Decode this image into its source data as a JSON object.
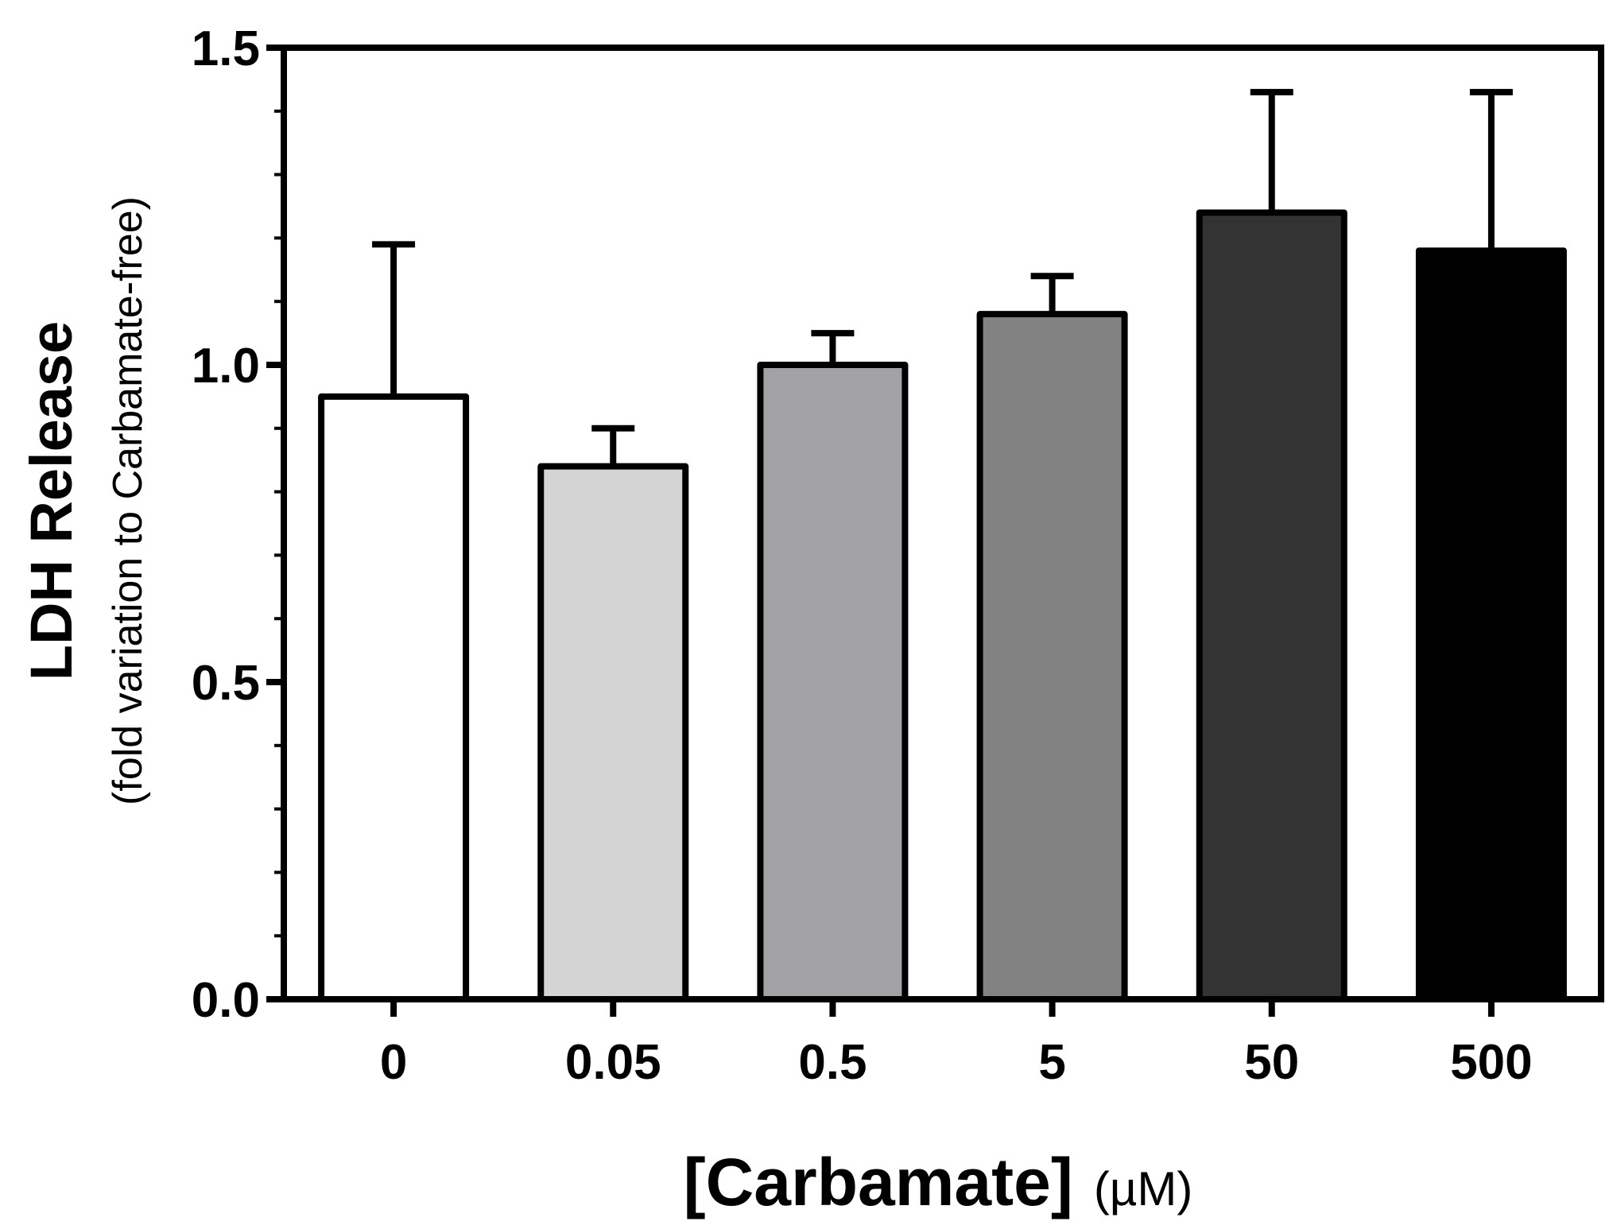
{
  "chart_data": {
    "type": "bar",
    "title": "",
    "categories": [
      "0",
      "0.05",
      "0.5",
      "5",
      "50",
      "500"
    ],
    "values": [
      0.95,
      0.84,
      1.0,
      1.08,
      1.24,
      1.18
    ],
    "error_upper": [
      1.19,
      0.9,
      1.05,
      1.14,
      1.43,
      1.43
    ],
    "bar_colors": [
      "#ffffff",
      "#d4d4d4",
      "#a2a2a6",
      "#828282",
      "#333333",
      "#000000"
    ],
    "ylim": [
      0,
      1.5
    ],
    "yticks": [
      "0.0",
      "0.5",
      "1.0",
      "1.5"
    ],
    "ylabel": "LDH Release",
    "ylabel_sub": "(fold variation to Carbamate-free)",
    "xlabel": "[Carbamate]",
    "xlabel_unit": "(µM)",
    "grid": false
  }
}
